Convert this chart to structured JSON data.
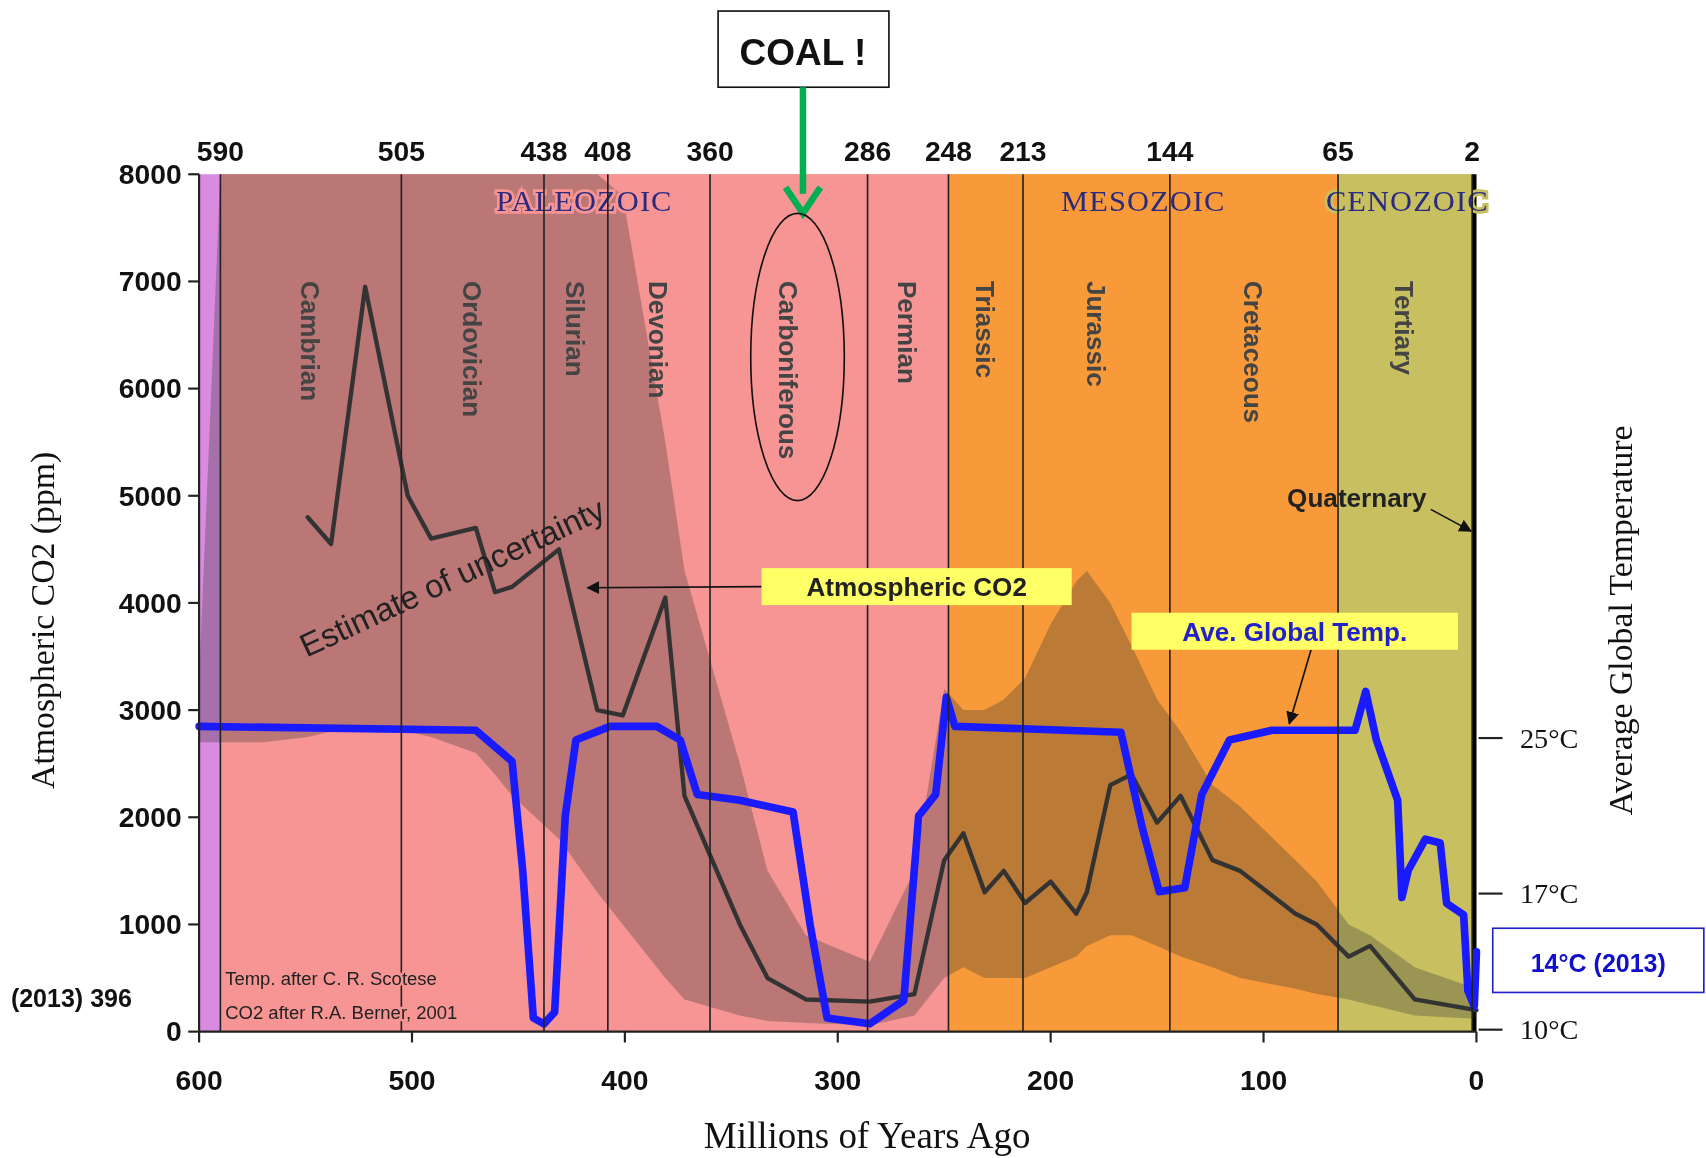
{
  "chart_data": {
    "type": "line",
    "xlabel": "Millions of Years Ago",
    "ylabel": "Atmospheric CO2 (ppm)",
    "y2label": "Average Global Temperature",
    "xlim": [
      600,
      0
    ],
    "xticks": [
      600,
      500,
      400,
      300,
      200,
      100,
      0
    ],
    "ylim": [
      0,
      8000
    ],
    "yticks": [
      0,
      1000,
      2000,
      3000,
      4000,
      5000,
      6000,
      7000,
      8000
    ],
    "y2lim": [
      9.9,
      54
    ],
    "y2ticks": [
      {
        "value": 10,
        "label": "10°C"
      },
      {
        "value": 17,
        "label": "17°C"
      },
      {
        "value": 25,
        "label": "25°C"
      }
    ],
    "grid": "x",
    "x2lim": [
      600,
      0
    ],
    "x2ticks": [
      590,
      505,
      438,
      408,
      360,
      286,
      248,
      213,
      144,
      65,
      2
    ],
    "series": [
      {
        "name": "Atmospheric CO2",
        "color": "#333333",
        "x": [
          600,
          590,
          570,
          549,
          538,
          522,
          502,
          491,
          470,
          461,
          453,
          431,
          413,
          401,
          381,
          372,
          346,
          333,
          315,
          285,
          264,
          250,
          241,
          231,
          222,
          212,
          200,
          188,
          183,
          172,
          162,
          150,
          139,
          124,
          111,
          85,
          75,
          60,
          50,
          29,
          0
        ],
        "values": [
          null,
          null,
          null,
          4800,
          4550,
          6950,
          5000,
          4600,
          4700,
          4100,
          4150,
          4500,
          3000,
          2950,
          4050,
          2200,
          1000,
          500,
          300,
          280,
          350,
          1600,
          1850,
          1300,
          1500,
          1200,
          1400,
          1100,
          1300,
          2300,
          2400,
          1950,
          2200,
          1600,
          1500,
          1100,
          1000,
          700,
          800,
          300,
          200
        ],
        "upper": [
          3300,
          8000,
          8000,
          8000,
          8000,
          8000,
          8000,
          8000,
          8000,
          8000,
          8000,
          8000,
          8000,
          7800,
          5500,
          4300,
          2500,
          1500,
          900,
          650,
          1500,
          3200,
          3000,
          3000,
          3100,
          3300,
          3800,
          4200,
          4300,
          4000,
          3600,
          3100,
          2800,
          2300,
          2100,
          1600,
          1400,
          1000,
          900,
          600,
          400
        ],
        "lower": [
          2700,
          2700,
          2700,
          2750,
          2800,
          2800,
          2800,
          2750,
          2600,
          2400,
          2200,
          1800,
          1300,
          1000,
          500,
          300,
          150,
          100,
          80,
          60,
          150,
          500,
          600,
          500,
          500,
          500,
          600,
          700,
          800,
          900,
          900,
          800,
          700,
          600,
          500,
          400,
          350,
          300,
          250,
          150,
          120
        ]
      },
      {
        "name": "Ave. Global Temp.",
        "color": "#1a1aff",
        "axis": "y2",
        "x": [
          600,
          470,
          453,
          448,
          443,
          438,
          433,
          428,
          423,
          407,
          385,
          374,
          366,
          346,
          321,
          313,
          305,
          285,
          269,
          262,
          254,
          249,
          245,
          167,
          157,
          149,
          137,
          129,
          116,
          96,
          57,
          52,
          47,
          37,
          35,
          32,
          24,
          17,
          14,
          6,
          4,
          1,
          0
        ],
        "values": [
          25.6,
          25.4,
          23.8,
          18.2,
          10.6,
          10.3,
          10.9,
          21.0,
          24.9,
          25.6,
          25.6,
          24.9,
          22.1,
          21.8,
          21.2,
          15.4,
          10.6,
          10.3,
          11.5,
          21.0,
          22.1,
          27.1,
          25.6,
          25.3,
          20.4,
          17.1,
          17.3,
          22.1,
          24.9,
          25.4,
          25.4,
          27.4,
          24.9,
          21.8,
          16.8,
          18.2,
          19.8,
          19.6,
          16.5,
          15.9,
          12.0,
          11.2,
          14
        ]
      }
    ],
    "bands": [
      {
        "axis": "x2",
        "from": 600,
        "to": 590,
        "color": "#d98be0"
      },
      {
        "axis": "x2",
        "from": 590,
        "to": 248,
        "label": "PALEOZOIC",
        "color": "#f79494"
      },
      {
        "axis": "x2",
        "from": 248,
        "to": 65,
        "label": "MESOZOIC",
        "color": "#f89a3a"
      },
      {
        "axis": "x2",
        "from": 65,
        "to": 0,
        "label": "CENOZOIC",
        "color": "#c8c060"
      },
      {
        "axis": "x2",
        "from": 590,
        "to": 505,
        "label": "Cambrian",
        "color": "#f79494"
      },
      {
        "axis": "x2",
        "from": 505,
        "to": 438,
        "label": "Ordovician",
        "color": "#f79494"
      },
      {
        "axis": "x2",
        "from": 438,
        "to": 408,
        "label": "Silurian",
        "color": "#f79494"
      },
      {
        "axis": "x2",
        "from": 408,
        "to": 360,
        "label": "Devonian",
        "color": "#f79494"
      },
      {
        "axis": "x2",
        "from": 360,
        "to": 286,
        "label": "Carboniferous",
        "color": "#f79494"
      },
      {
        "axis": "x2",
        "from": 286,
        "to": 248,
        "label": "Permian",
        "color": "#f79494"
      },
      {
        "axis": "x2",
        "from": 248,
        "to": 213,
        "label": "Triassic",
        "color": "#f89a3a"
      },
      {
        "axis": "x2",
        "from": 213,
        "to": 144,
        "label": "Jurassic",
        "color": "#f89a3a"
      },
      {
        "axis": "x2",
        "from": 144,
        "to": 65,
        "label": "Cretaceous",
        "color": "#f89a3a"
      },
      {
        "axis": "x2",
        "from": 65,
        "to": 2,
        "label": "Tertiary",
        "color": "#c8c060"
      },
      {
        "axis": "x2",
        "from": 2,
        "to": 0,
        "label": "Quaternary",
        "color": "#000000"
      }
    ],
    "annotations": [
      "Estimate of uncertainty",
      "COAL !",
      "(2013) 396",
      "14°C (2013)",
      "Temp. after C. R. Scotese",
      "CO2 after R.A. Berner, 2001"
    ]
  }
}
